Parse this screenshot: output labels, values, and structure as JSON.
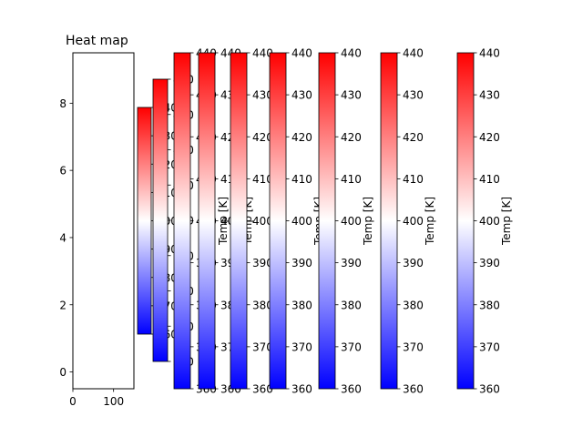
{
  "chart_data": {
    "type": "heatmap",
    "title": "Heat map",
    "x_ticks": [
      "0",
      "100"
    ],
    "x_tick_values": [
      0,
      100
    ],
    "xlim": [
      0,
      150
    ],
    "y_ticks": [
      "0",
      "2",
      "4",
      "6",
      "8"
    ],
    "y_tick_values": [
      0,
      2,
      4,
      6,
      8
    ],
    "ylim": [
      9.5,
      -0.5
    ],
    "colormap": {
      "low": "#0000ff",
      "mid": "#ffffff",
      "high": "#ff0000"
    },
    "colorbar_range": [
      360,
      440
    ],
    "colorbar_label": "Temp [K]",
    "colorbar_ticks": [
      [
        "360",
        "370",
        "380",
        "390",
        "400",
        "410",
        "420",
        "430",
        "440"
      ],
      [
        "360",
        "370",
        "380",
        "390",
        "400",
        "410",
        "420",
        "430",
        "440"
      ],
      [
        "360",
        "370",
        "380",
        "390",
        "400",
        "410",
        "420",
        "430",
        "440"
      ],
      [
        "360",
        "370",
        "380",
        "390",
        "400",
        "410",
        "420",
        "430",
        "440"
      ],
      [
        "360",
        "370",
        "380",
        "390",
        "400",
        "410",
        "420",
        "430",
        "440"
      ],
      [
        "360",
        "370",
        "380",
        "390",
        "400",
        "410",
        "420",
        "430",
        "440"
      ],
      [
        "360",
        "370",
        "380",
        "390",
        "400",
        "410",
        "420",
        "430",
        "440"
      ],
      [
        "360",
        "370",
        "380",
        "390",
        "400",
        "410",
        "420",
        "430",
        "440"
      ],
      [
        "360",
        "370",
        "380",
        "390",
        "400",
        "410",
        "420",
        "430",
        "440"
      ]
    ],
    "colorbar_count": 9
  }
}
